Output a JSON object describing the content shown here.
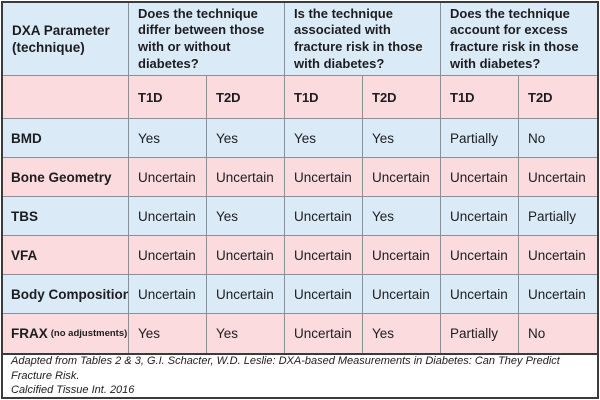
{
  "table": {
    "corner_header": "DXA Parameter\n(technique)",
    "questions": [
      "Does the technique differ between those with or without diabetes?",
      "Is the technique associated with fracture risk in those with diabetes?",
      "Does the technique account for excess fracture risk in those with diabetes?"
    ],
    "subheaders": [
      "T1D",
      "T2D",
      "T1D",
      "T2D",
      "T1D",
      "T2D"
    ],
    "rows": [
      {
        "label": "BMD",
        "values": [
          "Yes",
          "Yes",
          "Yes",
          "Yes",
          "Partially",
          "No"
        ]
      },
      {
        "label": "Bone Geometry",
        "values": [
          "Uncertain",
          "Uncertain",
          "Uncertain",
          "Uncertain",
          "Uncertain",
          "Uncertain"
        ]
      },
      {
        "label": "TBS",
        "values": [
          "Uncertain",
          "Yes",
          "Uncertain",
          "Yes",
          "Uncertain",
          "Partially"
        ]
      },
      {
        "label": "VFA",
        "values": [
          "Uncertain",
          "Uncertain",
          "Uncertain",
          "Uncertain",
          "Uncertain",
          "Uncertain"
        ]
      },
      {
        "label": "Body Composition",
        "values": [
          "Uncertain",
          "Uncertain",
          "Uncertain",
          "Uncertain",
          "Uncertain",
          "Uncertain"
        ]
      },
      {
        "label": "FRAX",
        "label_suffix": "(no adjustments)",
        "values": [
          "Yes",
          "Yes",
          "Uncertain",
          "Yes",
          "Partially",
          "No"
        ]
      }
    ],
    "footnote": "Adapted from Tables 2 & 3, G.I. Schacter, W.D. Leslie: DXA-based Measurements in Diabetes: Can They Predict Fracture Risk.\nCalcified Tissue Int. 2016"
  },
  "colors": {
    "row_blue": "#DAEBF7",
    "row_pink": "#FBDBDD",
    "grid_line": "#8A9097",
    "outer_border": "#3B3B3B",
    "text": "#1D1D20"
  }
}
